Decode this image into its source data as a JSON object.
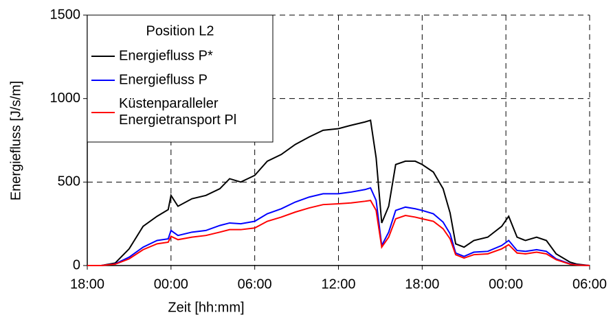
{
  "chart_data": {
    "type": "line",
    "xlabel": "Zeit  [hh:mm]",
    "ylabel": "Energiefluss   [J/s/m]",
    "legend_title": "Position L2",
    "legend": "upper-left",
    "grid": true,
    "x": [
      0,
      1,
      2,
      3,
      4,
      5,
      5.8,
      6,
      6.5,
      7.5,
      8.5,
      9.5,
      10.2,
      11,
      12,
      12.9,
      13.9,
      14.9,
      15.9,
      16.9,
      18,
      18.9,
      19.9,
      20.3,
      20.7,
      21.1,
      21.6,
      22.1,
      22.8,
      23.5,
      24,
      24.8,
      25.5,
      26,
      26.4,
      27,
      27.7,
      28.7,
      29.7,
      30.2,
      30.8,
      31.4,
      32.2,
      32.9,
      33.6,
      34.6,
      35.1,
      36
    ],
    "series": [
      {
        "name": "Energiefluss P*",
        "color": "#000000",
        "values": [
          0,
          0,
          15,
          100,
          235,
          295,
          335,
          420,
          355,
          400,
          420,
          460,
          520,
          500,
          540,
          625,
          665,
          725,
          770,
          810,
          820,
          840,
          860,
          870,
          645,
          255,
          355,
          605,
          625,
          625,
          605,
          560,
          460,
          315,
          130,
          110,
          150,
          170,
          235,
          295,
          170,
          150,
          170,
          150,
          70,
          20,
          8,
          0
        ]
      },
      {
        "name": "Energiefluss P",
        "color": "#0000ff",
        "values": [
          0,
          0,
          10,
          50,
          110,
          150,
          160,
          210,
          180,
          200,
          210,
          240,
          255,
          250,
          265,
          310,
          340,
          380,
          410,
          430,
          430,
          440,
          455,
          465,
          390,
          120,
          200,
          330,
          350,
          340,
          330,
          310,
          260,
          190,
          75,
          55,
          80,
          85,
          120,
          150,
          90,
          85,
          95,
          85,
          40,
          10,
          4,
          0
        ]
      },
      {
        "name": "Küstenparalleler Energietransport Pl",
        "color": "#ff0000",
        "values": [
          0,
          0,
          8,
          40,
          95,
          130,
          140,
          175,
          155,
          170,
          180,
          200,
          215,
          215,
          225,
          265,
          290,
          320,
          345,
          365,
          370,
          375,
          385,
          390,
          330,
          110,
          170,
          280,
          300,
          290,
          280,
          265,
          220,
          160,
          65,
          45,
          65,
          70,
          100,
          125,
          75,
          70,
          80,
          70,
          35,
          8,
          3,
          0
        ]
      }
    ],
    "xlim": [
      0,
      36
    ],
    "xticks": [
      {
        "value": 0,
        "label": "18:00"
      },
      {
        "value": 6,
        "label": "00:00"
      },
      {
        "value": 12,
        "label": "06:00"
      },
      {
        "value": 18,
        "label": "12:00"
      },
      {
        "value": 24,
        "label": "18:00"
      },
      {
        "value": 30,
        "label": "00:00"
      },
      {
        "value": 36,
        "label": "06:00"
      }
    ],
    "ylim": [
      0,
      1500
    ],
    "yticks": [
      0,
      500,
      1000,
      1500
    ]
  }
}
